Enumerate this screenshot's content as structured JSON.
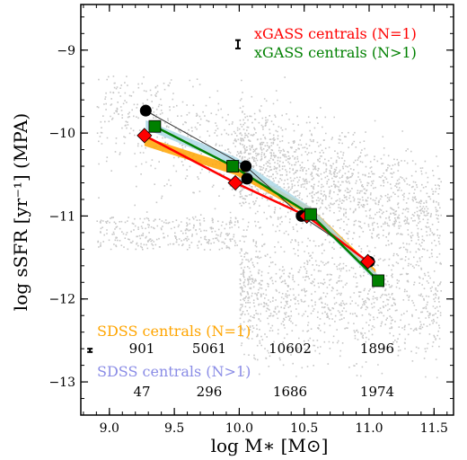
{
  "chart_data": {
    "type": "scatter",
    "xlabel": "log M∗ [M⊙]",
    "ylabel": "log sSFR [yr⁻¹] (MPA)",
    "xlim": [
      8.78,
      11.65
    ],
    "ylim": [
      -13.4,
      -8.45
    ],
    "x_ticks": [
      9.0,
      9.5,
      10.0,
      10.5,
      11.0,
      11.5
    ],
    "x_tick_labels": [
      "9.0",
      "9.5",
      "10.0",
      "10.5",
      "11.0",
      "11.5"
    ],
    "y_ticks": [
      -9,
      -10,
      -11,
      -12,
      -13
    ],
    "y_tick_labels": [
      "−9",
      "−10",
      "−11",
      "−12",
      "−13"
    ],
    "background": "grey scatter of individual galaxies",
    "series": [
      {
        "name": "SDSS centrals (N=1)",
        "color": "#ffa500",
        "style": "band",
        "x": [
          9.27,
          9.97,
          10.55,
          11.05
        ],
        "y": [
          -10.1,
          -10.45,
          -10.95,
          -11.7
        ]
      },
      {
        "name": "SDSS centrals (N>1)",
        "color": "#add8e6",
        "style": "band",
        "x": [
          9.28,
          9.98,
          10.55,
          11.06
        ],
        "y": [
          -9.9,
          -10.35,
          -10.95,
          -11.75
        ]
      },
      {
        "name": "",
        "color": "#000000",
        "style": "circle",
        "x": [
          9.28,
          10.05,
          10.48,
          11.0
        ],
        "y": [
          -9.73,
          -10.4,
          -11.0,
          -11.55
        ]
      },
      {
        "name": "",
        "color": "#000000",
        "style": "circle",
        "x": [
          10.06
        ],
        "y": [
          -10.55
        ]
      },
      {
        "name": "xGASS centrals (N=1)",
        "color": "#ff0000",
        "style": "diamond",
        "x": [
          9.27,
          9.97,
          10.52,
          10.99
        ],
        "y": [
          -10.03,
          -10.6,
          -11.0,
          -11.55
        ]
      },
      {
        "name": "xGASS centrals (N>1)",
        "color": "#008000",
        "style": "square",
        "x": [
          9.35,
          9.95,
          10.55,
          11.07
        ],
        "y": [
          -9.92,
          -10.4,
          -10.98,
          -11.78
        ]
      }
    ],
    "error_bar_xgass": {
      "x": 9.99,
      "y": -8.93,
      "err": 0.05
    },
    "error_bar_sdss": {
      "x": 8.85,
      "y": -12.62,
      "err": 0.02
    },
    "legend": {
      "xgass_n1": "xGASS centrals (N=1)",
      "xgass_n2": "xGASS centrals (N>1)",
      "sdss_n1": "SDSS centrals (N=1)",
      "sdss_n2": "SDSS centrals (N>1)"
    },
    "counts_n1": [
      "901",
      "5061",
      "10602",
      "1896"
    ],
    "counts_n2": [
      "47",
      "296",
      "1686",
      "1974"
    ],
    "colors": {
      "xgass_n1": "#ff0000",
      "xgass_n2": "#008000",
      "sdss_n1": "#ffa500",
      "sdss_n2": "#8a8ce6",
      "band_n1": "#ffa500",
      "band_n2": "#add8e6",
      "scatter": "#b5b5b5"
    }
  }
}
